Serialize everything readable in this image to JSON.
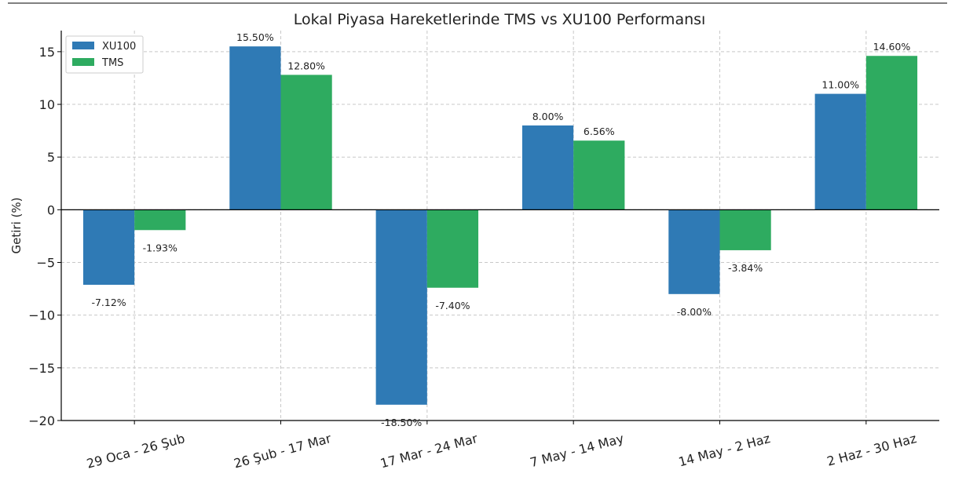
{
  "chart_data": {
    "type": "bar",
    "title": "Lokal Piyasa Hareketlerinde TMS vs XU100 Performansı",
    "xlabel": "",
    "ylabel": "Getiri (%)",
    "ylim": [
      -20,
      17
    ],
    "yticks": [
      -20,
      -15,
      -10,
      -5,
      0,
      5,
      10,
      15
    ],
    "ytick_labels": [
      "−20",
      "−15",
      "−10",
      "−5",
      "0",
      "5",
      "10",
      "15"
    ],
    "categories": [
      "29 Oca - 26 Şub",
      "26 Şub - 17 Mar",
      "17 Mar - 24 Mar",
      "7 May - 14 May",
      "14 May - 2 Haz",
      "2 Haz - 30 Haz"
    ],
    "series": [
      {
        "name": "XU100",
        "color": "#2f7ab5",
        "values": [
          -7.12,
          15.5,
          -18.5,
          8.0,
          -8.0,
          11.0
        ],
        "labels": [
          "-7.12%",
          "15.50%",
          "-18.50%",
          "8.00%",
          "-8.00%",
          "11.00%"
        ]
      },
      {
        "name": "TMS",
        "color": "#2eab60",
        "values": [
          -1.93,
          12.8,
          -7.4,
          6.56,
          -3.84,
          14.6
        ],
        "labels": [
          "-1.93%",
          "12.80%",
          "-7.40%",
          "6.56%",
          "-3.84%",
          "14.60%"
        ]
      }
    ],
    "grid": true,
    "legend_position": "top-left"
  }
}
